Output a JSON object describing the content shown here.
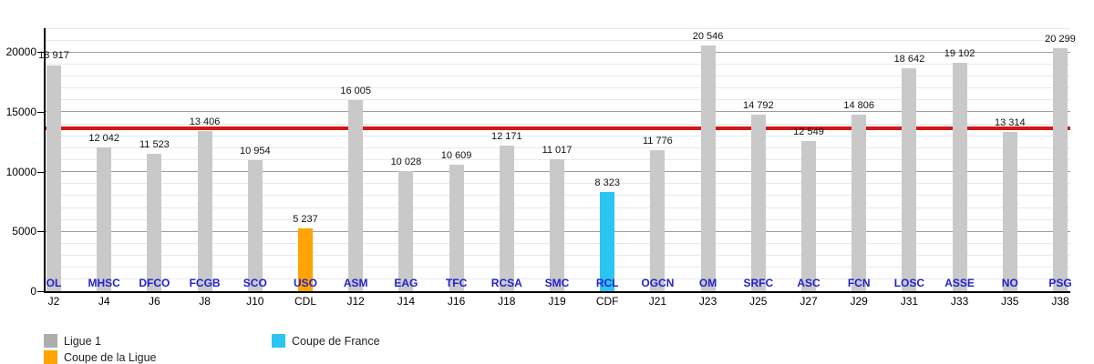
{
  "chart_data": {
    "type": "bar",
    "title": "",
    "grid": "on",
    "legend_position": "bottom",
    "y_axis": {
      "tick_values": [
        0,
        5000,
        10000,
        15000,
        20000
      ],
      "tick_labels": [
        "0",
        "5000",
        "10000",
        "15000",
        "20000"
      ],
      "minor_step": 1000,
      "ylim": [
        0,
        22000
      ]
    },
    "bars": [
      {
        "x": "J2",
        "club": "OL",
        "value": 18917,
        "value_label": "18 917",
        "series": "ligue1"
      },
      {
        "x": "J4",
        "club": "MHSC",
        "value": 12042,
        "value_label": "12 042",
        "series": "ligue1"
      },
      {
        "x": "J6",
        "club": "DFCO",
        "value": 11523,
        "value_label": "11 523",
        "series": "ligue1"
      },
      {
        "x": "J8",
        "club": "FCGB",
        "value": 13406,
        "value_label": "13 406",
        "series": "ligue1"
      },
      {
        "x": "J10",
        "club": "SCO",
        "value": 10954,
        "value_label": "10 954",
        "series": "ligue1"
      },
      {
        "x": "CDL",
        "club": "USO",
        "value": 5237,
        "value_label": "5 237",
        "series": "coupe_ligue"
      },
      {
        "x": "J12",
        "club": "ASM",
        "value": 16005,
        "value_label": "16 005",
        "series": "ligue1"
      },
      {
        "x": "J14",
        "club": "EAG",
        "value": 10028,
        "value_label": "10 028",
        "series": "ligue1"
      },
      {
        "x": "J16",
        "club": "TFC",
        "value": 10609,
        "value_label": "10 609",
        "series": "ligue1"
      },
      {
        "x": "J18",
        "club": "RCSA",
        "value": 12171,
        "value_label": "12 171",
        "series": "ligue1"
      },
      {
        "x": "J19",
        "club": "SMC",
        "value": 11017,
        "value_label": "11 017",
        "series": "ligue1"
      },
      {
        "x": "CDF",
        "club": "RCL",
        "value": 8323,
        "value_label": "8 323",
        "series": "coupe_france"
      },
      {
        "x": "J21",
        "club": "OGCN",
        "value": 11776,
        "value_label": "11 776",
        "series": "ligue1"
      },
      {
        "x": "J23",
        "club": "OM",
        "value": 20546,
        "value_label": "20 546",
        "series": "ligue1"
      },
      {
        "x": "J25",
        "club": "SRFC",
        "value": 14792,
        "value_label": "14 792",
        "series": "ligue1"
      },
      {
        "x": "J27",
        "club": "ASC",
        "value": 12549,
        "value_label": "12 549",
        "series": "ligue1"
      },
      {
        "x": "J29",
        "club": "FCN",
        "value": 14806,
        "value_label": "14 806",
        "series": "ligue1"
      },
      {
        "x": "J31",
        "club": "LOSC",
        "value": 18642,
        "value_label": "18 642",
        "series": "ligue1"
      },
      {
        "x": "J33",
        "club": "ASSE",
        "value": 19102,
        "value_label": "19 102",
        "series": "ligue1"
      },
      {
        "x": "J35",
        "club": "NO",
        "value": 13314,
        "value_label": "13 314",
        "series": "ligue1"
      },
      {
        "x": "J38",
        "club": "PSG",
        "value": 20299,
        "value_label": "20 299",
        "series": "ligue1"
      }
    ],
    "average_line": {
      "value": 13622,
      "color": "#d41717"
    },
    "colors": {
      "bar_ligue1": "#c9c9c9",
      "bar_coupe_ligue": "#ffa402",
      "bar_coupe_france": "#2bc5f2",
      "club_label": "#2222cc",
      "gridline_minor": "#e8e8e8",
      "gridline_major": "#9f9f9f",
      "legend_ligue1_swatch": "#adadad"
    },
    "legend": [
      {
        "key": "ligue1",
        "label": "Ligue 1",
        "swatch": "#adadad",
        "col": 1,
        "row": 1
      },
      {
        "key": "coupe_ligue",
        "label": "Coupe de la Ligue",
        "swatch": "#ffa402",
        "col": 1,
        "row": 2
      },
      {
        "key": "coupe_france",
        "label": "Coupe de France",
        "swatch": "#2bc5f2",
        "col": 2,
        "row": 1
      }
    ]
  }
}
